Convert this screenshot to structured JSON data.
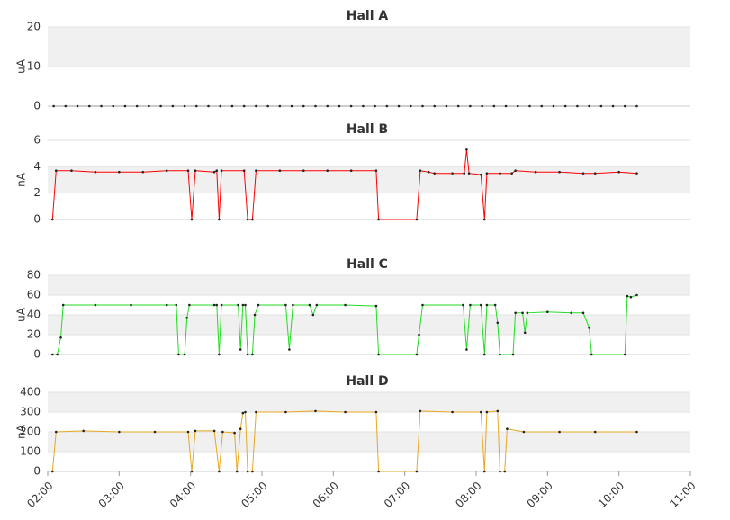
{
  "chart_data": [
    {
      "type": "line",
      "title": "Hall A",
      "ylabel": "uA",
      "color": "#000000",
      "grid": true,
      "xlim": [
        "02:00",
        "11:00"
      ],
      "ylim": [
        0,
        20
      ],
      "yticks": [
        0,
        10,
        20
      ],
      "x": [
        "02:05",
        "02:15",
        "02:25",
        "02:35",
        "02:45",
        "02:55",
        "03:05",
        "03:15",
        "03:25",
        "03:35",
        "03:45",
        "03:55",
        "04:05",
        "04:15",
        "04:25",
        "04:35",
        "04:45",
        "04:55",
        "05:05",
        "05:15",
        "05:25",
        "05:35",
        "05:45",
        "05:55",
        "06:05",
        "06:15",
        "06:25",
        "06:35",
        "06:45",
        "06:55",
        "07:05",
        "07:15",
        "07:25",
        "07:35",
        "07:45",
        "07:55",
        "08:05",
        "08:15",
        "08:25",
        "08:35",
        "08:45",
        "08:55",
        "09:05",
        "09:15",
        "09:25",
        "09:35",
        "09:45",
        "09:55",
        "10:05",
        "10:15"
      ],
      "values": [
        0,
        0,
        0,
        0,
        0,
        0,
        0,
        0,
        0,
        0,
        0,
        0,
        0,
        0,
        0,
        0,
        0,
        0,
        0,
        0,
        0,
        0,
        0,
        0,
        0,
        0,
        0,
        0,
        0,
        0,
        0,
        0,
        0,
        0,
        0,
        0,
        0,
        0,
        0,
        0,
        0,
        0,
        0,
        0,
        0,
        0,
        0,
        0,
        0,
        0
      ]
    },
    {
      "type": "line",
      "title": "Hall B",
      "ylabel": "nA",
      "color": "#ff0000",
      "grid": true,
      "xlim": [
        "02:00",
        "11:00"
      ],
      "ylim": [
        0,
        6
      ],
      "yticks": [
        0,
        2,
        4,
        6
      ],
      "x": [
        "02:04",
        "02:07",
        "02:20",
        "02:40",
        "03:00",
        "03:20",
        "03:40",
        "03:58",
        "04:01",
        "04:04",
        "04:20",
        "04:22",
        "04:24",
        "04:26",
        "04:45",
        "04:48",
        "04:52",
        "04:55",
        "05:15",
        "05:35",
        "05:55",
        "06:15",
        "06:36",
        "06:38",
        "07:10",
        "07:13",
        "07:20",
        "07:25",
        "07:40",
        "07:50",
        "07:52",
        "07:54",
        "08:04",
        "08:07",
        "08:09",
        "08:20",
        "08:30",
        "08:33",
        "08:50",
        "09:10",
        "09:30",
        "09:40",
        "10:00",
        "10:15"
      ],
      "values": [
        0,
        3.7,
        3.7,
        3.6,
        3.6,
        3.6,
        3.7,
        3.7,
        0,
        3.7,
        3.6,
        3.7,
        0,
        3.7,
        3.7,
        0,
        0,
        3.7,
        3.7,
        3.7,
        3.7,
        3.7,
        3.7,
        0,
        0,
        3.7,
        3.6,
        3.5,
        3.5,
        3.5,
        5.3,
        3.5,
        3.4,
        0,
        3.5,
        3.5,
        3.5,
        3.7,
        3.6,
        3.6,
        3.5,
        3.5,
        3.6,
        3.5
      ]
    },
    {
      "type": "line",
      "title": "Hall C",
      "ylabel": "uA",
      "color": "#22dd22",
      "grid": true,
      "xlim": [
        "02:00",
        "11:00"
      ],
      "ylim": [
        0,
        80
      ],
      "yticks": [
        0,
        20,
        40,
        60,
        80
      ],
      "x": [
        "02:04",
        "02:08",
        "02:11",
        "02:13",
        "02:40",
        "03:10",
        "03:40",
        "03:48",
        "03:50",
        "03:55",
        "03:57",
        "03:59",
        "04:20",
        "04:22",
        "04:24",
        "04:26",
        "04:40",
        "04:42",
        "04:44",
        "04:46",
        "04:48",
        "04:52",
        "04:54",
        "04:57",
        "05:20",
        "05:23",
        "05:26",
        "05:40",
        "05:43",
        "05:46",
        "06:10",
        "06:36",
        "06:38",
        "07:10",
        "07:12",
        "07:15",
        "07:49",
        "07:52",
        "07:55",
        "08:04",
        "08:07",
        "08:09",
        "08:16",
        "08:18",
        "08:20",
        "08:31",
        "08:33",
        "08:39",
        "08:41",
        "08:43",
        "09:00",
        "09:20",
        "09:30",
        "09:35",
        "09:37",
        "10:05",
        "10:07",
        "10:10",
        "10:15"
      ],
      "values": [
        0,
        0,
        17,
        50,
        50,
        50,
        50,
        50,
        0,
        0,
        37,
        50,
        50,
        50,
        0,
        50,
        50,
        5,
        50,
        50,
        0,
        0,
        40,
        50,
        50,
        5,
        50,
        50,
        40,
        50,
        50,
        49,
        0,
        0,
        20,
        50,
        50,
        5,
        50,
        50,
        0,
        50,
        50,
        32,
        0,
        0,
        42,
        42,
        22,
        42,
        43,
        42,
        42,
        27,
        0,
        0,
        59,
        58,
        60
      ]
    },
    {
      "type": "line",
      "title": "Hall D",
      "ylabel": "nA",
      "color": "#e8a820",
      "grid": true,
      "xlim": [
        "02:00",
        "11:00"
      ],
      "ylim": [
        0,
        400
      ],
      "yticks": [
        0,
        100,
        200,
        300,
        400
      ],
      "xticks": [
        "02:00",
        "03:00",
        "04:00",
        "05:00",
        "06:00",
        "07:00",
        "08:00",
        "09:00",
        "10:00",
        "11:00"
      ],
      "x": [
        "02:04",
        "02:07",
        "02:30",
        "03:00",
        "03:30",
        "03:58",
        "04:01",
        "04:04",
        "04:20",
        "04:24",
        "04:27",
        "04:37",
        "04:39",
        "04:42",
        "04:44",
        "04:46",
        "04:48",
        "04:52",
        "04:55",
        "05:20",
        "05:45",
        "06:10",
        "06:36",
        "06:38",
        "07:10",
        "07:13",
        "07:40",
        "08:04",
        "08:07",
        "08:09",
        "08:18",
        "08:20",
        "08:24",
        "08:26",
        "08:40",
        "09:10",
        "09:40",
        "10:15"
      ],
      "values": [
        0,
        200,
        205,
        200,
        200,
        200,
        0,
        205,
        205,
        0,
        200,
        195,
        0,
        215,
        295,
        300,
        0,
        0,
        300,
        300,
        305,
        300,
        300,
        0,
        0,
        305,
        300,
        300,
        0,
        300,
        305,
        0,
        0,
        215,
        200,
        200,
        200,
        200
      ]
    }
  ]
}
